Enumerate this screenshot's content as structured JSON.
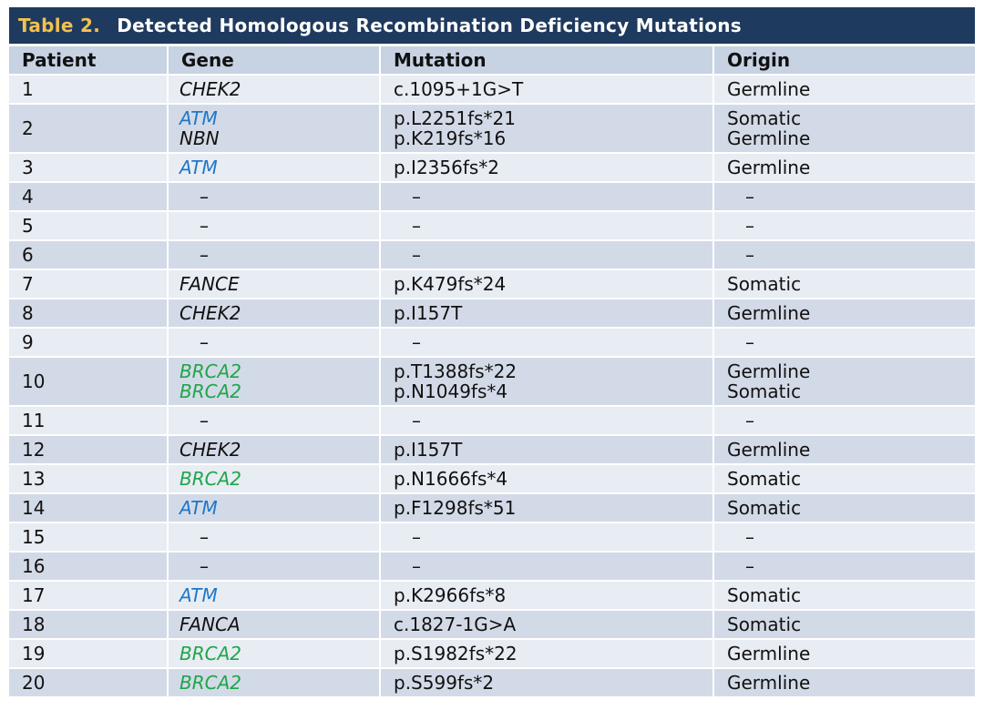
{
  "table": {
    "title_number": "Table 2.",
    "title_text": "Detected Homologous Recombination Deficiency Mutations",
    "headers": [
      "Patient",
      "Gene",
      "Mutation",
      "Origin"
    ],
    "colors": {
      "title_bg": "#1f3a5f",
      "title_number": "#f2c14e",
      "header_bg": "#c7d2e3",
      "row_light": "#e8ecf3",
      "row_dark": "#d3dae7",
      "gene_ATM": "#1f77c8",
      "gene_BRCA2": "#1fa64a",
      "gene_default": "#111111"
    },
    "rows": [
      {
        "patient": "1",
        "genes": [
          "CHEK2"
        ],
        "mutations": [
          "c.1095+1G>T"
        ],
        "origins": [
          "Germline"
        ]
      },
      {
        "patient": "2",
        "genes": [
          "ATM",
          "NBN"
        ],
        "mutations": [
          "p.L2251fs*21",
          "p.K219fs*16"
        ],
        "origins": [
          "Somatic",
          "Germline"
        ]
      },
      {
        "patient": "3",
        "genes": [
          "ATM"
        ],
        "mutations": [
          "p.I2356fs*2"
        ],
        "origins": [
          "Germline"
        ]
      },
      {
        "patient": "4",
        "genes": [
          "–"
        ],
        "mutations": [
          "–"
        ],
        "origins": [
          "–"
        ]
      },
      {
        "patient": "5",
        "genes": [
          "–"
        ],
        "mutations": [
          "–"
        ],
        "origins": [
          "–"
        ]
      },
      {
        "patient": "6",
        "genes": [
          "–"
        ],
        "mutations": [
          "–"
        ],
        "origins": [
          "–"
        ]
      },
      {
        "patient": "7",
        "genes": [
          "FANCE"
        ],
        "mutations": [
          "p.K479fs*24"
        ],
        "origins": [
          "Somatic"
        ]
      },
      {
        "patient": "8",
        "genes": [
          "CHEK2"
        ],
        "mutations": [
          "p.I157T"
        ],
        "origins": [
          "Germline"
        ]
      },
      {
        "patient": "9",
        "genes": [
          "–"
        ],
        "mutations": [
          "–"
        ],
        "origins": [
          "–"
        ]
      },
      {
        "patient": "10",
        "genes": [
          "BRCA2",
          "BRCA2"
        ],
        "mutations": [
          "p.T1388fs*22",
          "p.N1049fs*4"
        ],
        "origins": [
          "Germline",
          "Somatic"
        ]
      },
      {
        "patient": "11",
        "genes": [
          "–"
        ],
        "mutations": [
          "–"
        ],
        "origins": [
          "–"
        ]
      },
      {
        "patient": "12",
        "genes": [
          "CHEK2"
        ],
        "mutations": [
          "p.I157T"
        ],
        "origins": [
          "Germline"
        ]
      },
      {
        "patient": "13",
        "genes": [
          "BRCA2"
        ],
        "mutations": [
          "p.N1666fs*4"
        ],
        "origins": [
          "Somatic"
        ]
      },
      {
        "patient": "14",
        "genes": [
          "ATM"
        ],
        "mutations": [
          "p.F1298fs*51"
        ],
        "origins": [
          "Somatic"
        ]
      },
      {
        "patient": "15",
        "genes": [
          "–"
        ],
        "mutations": [
          "–"
        ],
        "origins": [
          "–"
        ]
      },
      {
        "patient": "16",
        "genes": [
          "–"
        ],
        "mutations": [
          "–"
        ],
        "origins": [
          "–"
        ]
      },
      {
        "patient": "17",
        "genes": [
          "ATM"
        ],
        "mutations": [
          "p.K2966fs*8"
        ],
        "origins": [
          "Somatic"
        ]
      },
      {
        "patient": "18",
        "genes": [
          "FANCA"
        ],
        "mutations": [
          "c.1827-1G>A"
        ],
        "origins": [
          "Somatic"
        ]
      },
      {
        "patient": "19",
        "genes": [
          "BRCA2"
        ],
        "mutations": [
          "p.S1982fs*22"
        ],
        "origins": [
          "Germline"
        ]
      },
      {
        "patient": "20",
        "genes": [
          "BRCA2"
        ],
        "mutations": [
          "p.S599fs*2"
        ],
        "origins": [
          "Germline"
        ]
      }
    ]
  }
}
